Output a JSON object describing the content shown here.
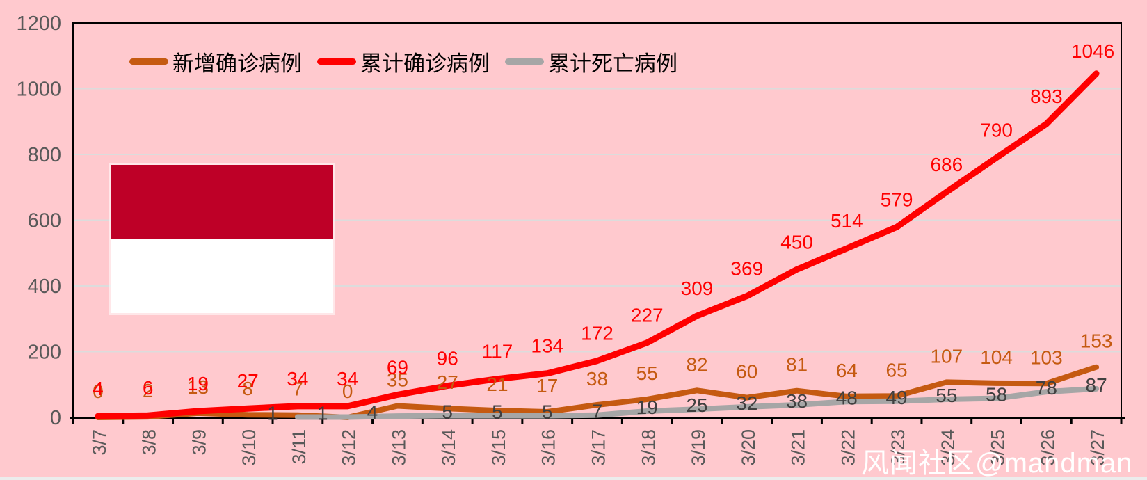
{
  "chart_data": {
    "type": "line",
    "categories": [
      "3/7",
      "3/8",
      "3/9",
      "3/10",
      "3/11",
      "3/12",
      "3/13",
      "3/14",
      "3/15",
      "3/16",
      "3/17",
      "3/18",
      "3/19",
      "3/20",
      "3/21",
      "3/22",
      "3/23",
      "3/24",
      "3/25",
      "3/26",
      "3/27"
    ],
    "series": [
      {
        "key": "new-cases",
        "name": "新增确诊病例",
        "color": "#C55A11",
        "label_color": "#C55A11",
        "values": [
          0,
          2,
          13,
          8,
          7,
          0,
          35,
          27,
          21,
          17,
          38,
          55,
          82,
          60,
          81,
          64,
          65,
          107,
          104,
          103,
          153
        ]
      },
      {
        "key": "cumulative-cases",
        "name": "累计确诊病例",
        "color": "#FF0000",
        "label_color": "#FF0000",
        "values": [
          4,
          6,
          19,
          27,
          34,
          34,
          69,
          96,
          117,
          134,
          172,
          227,
          309,
          369,
          450,
          514,
          579,
          686,
          790,
          893,
          1046
        ]
      },
      {
        "key": "cumulative-deaths",
        "name": "累计死亡病例",
        "color": "#A6A6A6",
        "label_color": "#404040",
        "values": [
          null,
          null,
          null,
          null,
          1,
          1,
          4,
          5,
          5,
          5,
          7,
          19,
          25,
          32,
          38,
          48,
          49,
          55,
          58,
          78,
          87
        ]
      }
    ],
    "ylim": [
      0,
      1200
    ],
    "yticks": [
      0,
      200,
      400,
      600,
      800,
      1000,
      1200
    ],
    "grid": true,
    "legend_position": "top-left-inside",
    "data_labels": true,
    "background_color": "#FFC9CE",
    "gridline_color": "#DCDCDC",
    "axis_color": "#000000",
    "axis_label_color": "#595959"
  },
  "flag": {
    "name": "Indonesia",
    "top_color": "#BE0027",
    "bottom_color": "#FFFFFF"
  },
  "watermark": {
    "text": "风闻社区@mandman",
    "color": "#FFFFFF"
  }
}
